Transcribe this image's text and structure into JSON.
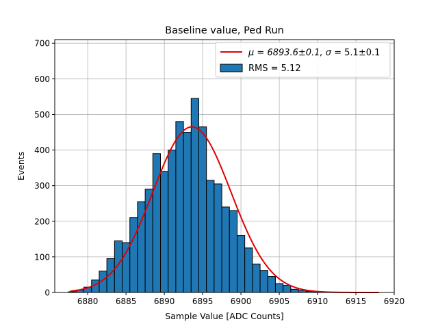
{
  "chart_data": {
    "type": "bar",
    "title": "Baseline value, Ped Run",
    "xlabel": "Sample Value [ADC Counts]",
    "ylabel": "Events",
    "xlim": [
      6875.7,
      6920
    ],
    "ylim": [
      0,
      710
    ],
    "xticks": [
      6880,
      6885,
      6890,
      6895,
      6900,
      6905,
      6910,
      6915,
      6920
    ],
    "yticks": [
      0,
      100,
      200,
      300,
      400,
      500,
      600,
      700
    ],
    "grid": true,
    "legend_position": "upper right",
    "bin_width": 1,
    "bin_start": 6877.5,
    "bin_counts": [
      2,
      7,
      15,
      35,
      60,
      95,
      145,
      140,
      210,
      255,
      290,
      390,
      340,
      400,
      480,
      450,
      545,
      465,
      315,
      305,
      240,
      230,
      160,
      125,
      80,
      62,
      45,
      25,
      20,
      9,
      6,
      3,
      1,
      1,
      0,
      0,
      0,
      0,
      0,
      0
    ],
    "bar_color": "#1f77b4",
    "fit": {
      "mu": 6893.6,
      "sigma": 5.1,
      "amplitude": 465,
      "x_range": [
        6877.7,
        6918.0
      ],
      "color": "#e00000"
    },
    "legend": [
      {
        "label_prefix": "μ = 6893.6±0.1, ",
        "label_sigma": "σ",
        "label_suffix": " = 5.1±0.1",
        "kind": "line"
      },
      {
        "label": "RMS = 5.12",
        "kind": "bar"
      }
    ]
  }
}
